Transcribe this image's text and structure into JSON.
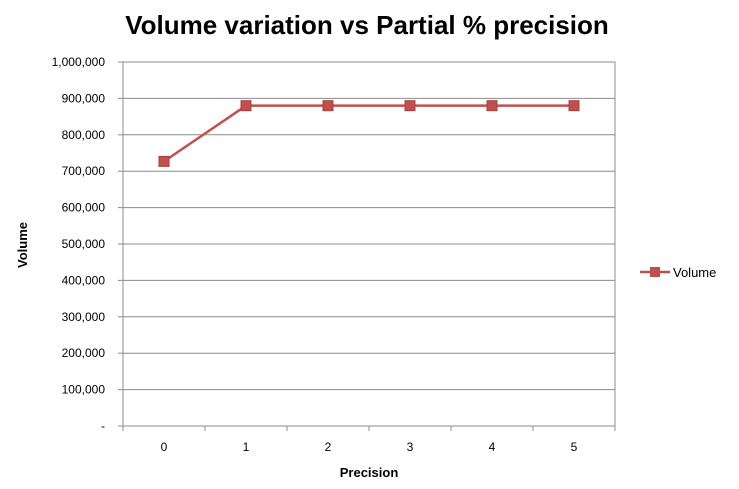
{
  "chart_data": {
    "type": "line",
    "title": "Volume variation vs Partial % precision",
    "xlabel": "Precision",
    "ylabel": "Volume",
    "categories": [
      "0",
      "1",
      "2",
      "3",
      "4",
      "5"
    ],
    "y_tick_labels": [
      "-",
      "100,000",
      "200,000",
      "300,000",
      "400,000",
      "500,000",
      "600,000",
      "700,000",
      "800,000",
      "900,000",
      "1,000,000"
    ],
    "ylim": [
      0,
      1000000
    ],
    "grid": true,
    "legend_position": "right",
    "series": [
      {
        "name": "Volume",
        "values": [
          727000,
          880000,
          880000,
          880000,
          880000,
          880000
        ],
        "color": "#C0504D",
        "marker": "square"
      }
    ]
  }
}
